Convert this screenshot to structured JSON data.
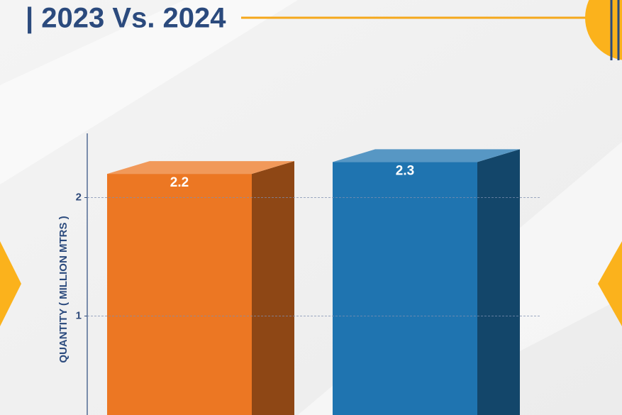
{
  "chart_data": {
    "type": "bar",
    "title": "| 2023 Vs. 2024",
    "y_label": "QUANTITY ( MILLION MTRS )",
    "categories": [
      null,
      null
    ],
    "values": [
      2.2,
      2.3
    ],
    "colors": [
      "#ec7723",
      "#1f74b0"
    ],
    "ylim": [
      0,
      2.5
    ],
    "yticks": [
      1,
      2
    ],
    "grid": true
  }
}
